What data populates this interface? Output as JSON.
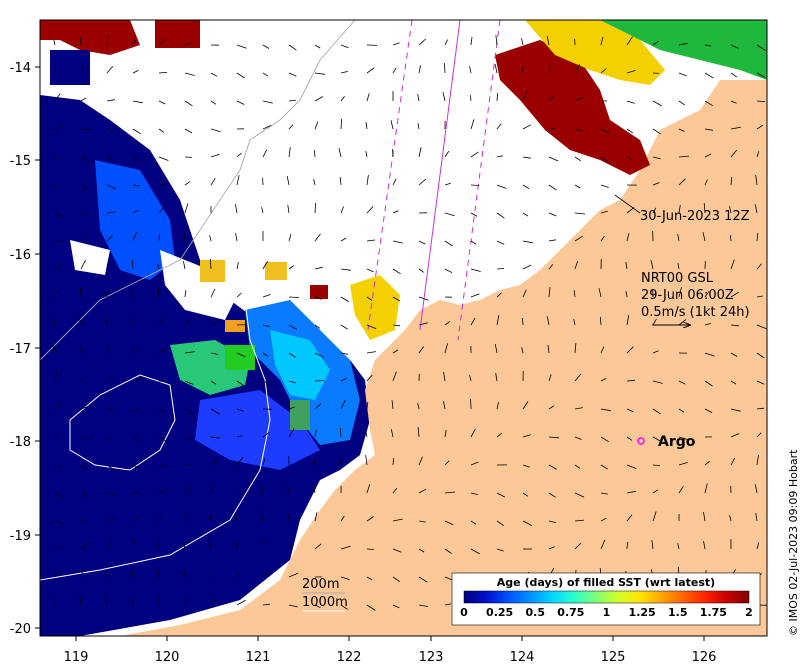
{
  "map": {
    "x_ticks": [
      "119",
      "120",
      "121",
      "122",
      "123",
      "124",
      "125",
      "126"
    ],
    "y_ticks": [
      "-14",
      "-15",
      "-16",
      "-17",
      "-18",
      "-19",
      "-20"
    ],
    "x_range": [
      118.65,
      126.65
    ],
    "y_range": [
      -20.05,
      -13.5
    ]
  },
  "annotations": {
    "track_time": "30-Jun-2023 12Z",
    "product_line1": "NRT00 GSL",
    "product_line2": "29-Jun 06:00Z",
    "product_line3": "0.5m/s (1kt 24h)",
    "argo_label": "Argo",
    "contour_200": "200m",
    "contour_1000": "1000m",
    "credit": "© IMOS 02-Jul-2023 09:09 Hobart"
  },
  "colorbar": {
    "title": "Age (days) of filled SST (wrt latest)",
    "ticks": [
      "0",
      "0.25",
      "0.5",
      "0.75",
      "1",
      "1.25",
      "1.5",
      "1.75",
      "2"
    ],
    "colors": [
      "#00007f",
      "#0010c8",
      "#0050ff",
      "#0090ff",
      "#00d4ff",
      "#29ffce",
      "#7dff7a",
      "#ceff29",
      "#ffe500",
      "#ffa600",
      "#ff6300",
      "#ff2400",
      "#c80000",
      "#7f0000"
    ]
  },
  "colors": {
    "land": "#fcc897",
    "no_data": "#ffffff",
    "deep_age": "#000080",
    "argo_marker": "#ff00ff",
    "track_line": "#cc33cc"
  }
}
